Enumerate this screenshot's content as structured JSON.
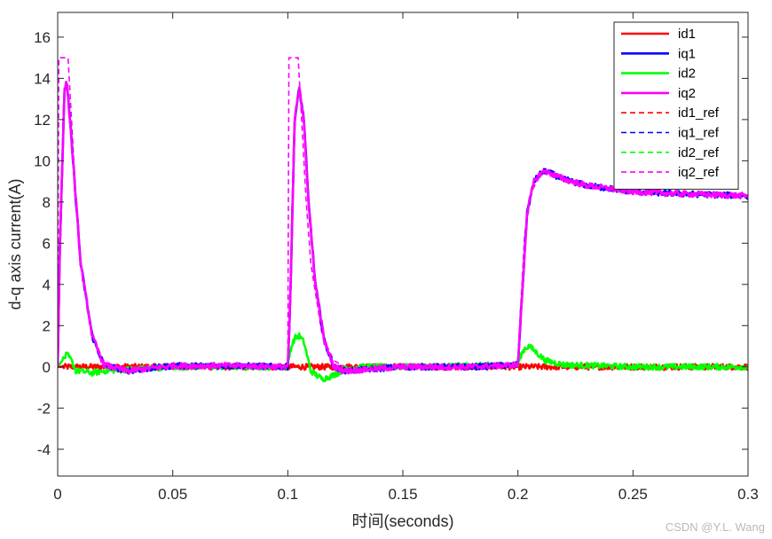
{
  "chart_data": {
    "type": "line",
    "title": "",
    "xlabel": "时间(seconds)",
    "ylabel": "d-q axis current(A)",
    "xlim": [
      0,
      0.3
    ],
    "ylim": [
      -5.3,
      17.2
    ],
    "xticks": [
      0,
      0.05,
      0.1,
      0.15,
      0.2,
      0.25,
      0.3
    ],
    "xtick_labels": [
      "0",
      "0.05",
      "0.1",
      "0.15",
      "0.2",
      "0.25",
      "0.3"
    ],
    "yticks": [
      -4,
      -2,
      0,
      2,
      4,
      6,
      8,
      10,
      12,
      14,
      16
    ],
    "ytick_labels": [
      "-4",
      "-2",
      "0",
      "2",
      "4",
      "6",
      "8",
      "10",
      "12",
      "14",
      "16"
    ],
    "grid": false,
    "legend_position": "top-right",
    "series": [
      {
        "name": "id1",
        "color": "#ff0000",
        "style": "solid",
        "x": [
          0,
          0.02,
          0.05,
          0.1,
          0.15,
          0.2,
          0.25,
          0.3
        ],
        "y": [
          0,
          0,
          0,
          0,
          0,
          0,
          0,
          0
        ]
      },
      {
        "name": "iq1",
        "color": "#0000ff",
        "style": "solid",
        "x": [
          0,
          0.001,
          0.003,
          0.004,
          0.006,
          0.01,
          0.015,
          0.02,
          0.03,
          0.05,
          0.08,
          0.1,
          0.101,
          0.103,
          0.105,
          0.107,
          0.109,
          0.112,
          0.116,
          0.12,
          0.125,
          0.15,
          0.18,
          0.2,
          0.201,
          0.204,
          0.207,
          0.21,
          0.212,
          0.22,
          0.23,
          0.25,
          0.27,
          0.3
        ],
        "y": [
          0,
          6,
          13.5,
          13.8,
          11,
          5,
          1.5,
          0.1,
          -0.2,
          0.05,
          0.05,
          0,
          3,
          12,
          13.5,
          12,
          8,
          4,
          1.2,
          0,
          -0.2,
          0,
          0,
          0.1,
          2,
          7.5,
          9,
          9.4,
          9.5,
          9.1,
          8.8,
          8.5,
          8.4,
          8.3
        ]
      },
      {
        "name": "id2",
        "color": "#00ff00",
        "style": "solid",
        "x": [
          0,
          0.002,
          0.004,
          0.006,
          0.008,
          0.01,
          0.015,
          0.02,
          0.05,
          0.1,
          0.101,
          0.103,
          0.105,
          0.107,
          0.11,
          0.115,
          0.12,
          0.125,
          0.13,
          0.15,
          0.2,
          0.201,
          0.203,
          0.205,
          0.208,
          0.212,
          0.22,
          0.25,
          0.3
        ],
        "y": [
          0,
          0.3,
          0.6,
          0.3,
          -0.2,
          -0.2,
          -0.3,
          -0.2,
          0,
          0,
          0.8,
          1.4,
          1.5,
          1.2,
          -0.2,
          -0.6,
          -0.4,
          -0.1,
          0,
          0,
          0.1,
          0.5,
          0.9,
          1.0,
          0.7,
          0.3,
          0.1,
          0,
          0
        ]
      },
      {
        "name": "iq2",
        "color": "#ff00ff",
        "style": "solid",
        "x": [
          0,
          0.001,
          0.003,
          0.004,
          0.006,
          0.01,
          0.015,
          0.02,
          0.03,
          0.05,
          0.08,
          0.1,
          0.101,
          0.103,
          0.105,
          0.107,
          0.109,
          0.112,
          0.116,
          0.12,
          0.125,
          0.15,
          0.18,
          0.2,
          0.201,
          0.204,
          0.207,
          0.21,
          0.212,
          0.22,
          0.23,
          0.25,
          0.27,
          0.3
        ],
        "y": [
          0,
          6,
          13.5,
          13.8,
          11,
          5,
          1.5,
          0.1,
          -0.2,
          0.05,
          0.05,
          0,
          3,
          12,
          13.5,
          12,
          8,
          4,
          1.2,
          0,
          -0.2,
          0,
          0,
          0.1,
          2,
          7.5,
          9,
          9.4,
          9.5,
          9.1,
          8.8,
          8.5,
          8.4,
          8.3
        ]
      },
      {
        "name": "id1_ref",
        "color": "#ff0000",
        "style": "dashed",
        "x": [
          0,
          0.3
        ],
        "y": [
          0,
          0
        ]
      },
      {
        "name": "iq1_ref",
        "color": "#0000ff",
        "style": "dashed",
        "x": [
          0,
          0.3
        ],
        "y": [
          0,
          0
        ]
      },
      {
        "name": "id2_ref",
        "color": "#00ff00",
        "style": "dashed",
        "x": [
          0,
          0.3
        ],
        "y": [
          0,
          0
        ]
      },
      {
        "name": "iq2_ref",
        "color": "#ff00ff",
        "style": "dashed",
        "x": [
          0,
          0.0005,
          0.0045,
          0.006,
          0.008,
          0.01,
          0.015,
          0.02,
          0.025,
          0.1,
          0.1005,
          0.1045,
          0.106,
          0.108,
          0.11,
          0.115,
          0.12,
          0.125,
          0.2,
          0.2005,
          0.203,
          0.206,
          0.21,
          0.215,
          0.22,
          0.23,
          0.25,
          0.3
        ],
        "y": [
          0,
          15,
          15,
          12,
          8,
          5,
          1.5,
          0.3,
          0,
          0,
          15,
          15,
          12,
          8,
          5,
          1.5,
          0.3,
          0,
          0,
          1.5,
          6.5,
          8.5,
          9.4,
          9.3,
          9,
          8.7,
          8.4,
          8.3
        ]
      }
    ]
  },
  "watermark": "CSDN @Y.L. Wang"
}
